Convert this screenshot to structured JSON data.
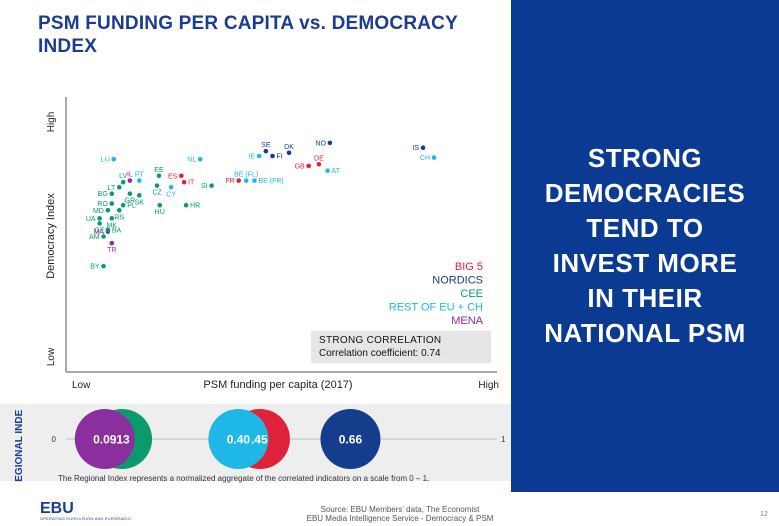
{
  "title": "PSM FUNDING PER CAPITA vs. DEMOCRACY INDEX",
  "right_panel": {
    "lines": [
      "STRONG",
      "DEMOCRACIES",
      "TEND TO",
      "INVEST MORE",
      "IN THEIR",
      "NATIONAL PSM"
    ]
  },
  "colors": {
    "big5": "#e0213a",
    "nordics": "#163d8c",
    "cee": "#0a9a6e",
    "rest": "#1fb8e6",
    "mena": "#8b2f9e",
    "navy": "#0a3a92"
  },
  "legend": [
    {
      "key": "big5",
      "label": "BIG 5"
    },
    {
      "key": "nordics",
      "label": "NORDICS"
    },
    {
      "key": "cee",
      "label": "CEE"
    },
    {
      "key": "rest",
      "label": "REST OF EU + CH"
    },
    {
      "key": "mena",
      "label": "MENA"
    }
  ],
  "correlation": {
    "title": "STRONG CORRELATION",
    "text": "Correlation coefficient: 0.74"
  },
  "chart_data": {
    "type": "scatter",
    "title": "PSM FUNDING PER CAPITA vs. DEMOCRACY INDEX",
    "xlabel": "PSM funding per capita (2017)",
    "ylabel": "Democracy Index",
    "x_ticks": [
      "Low",
      "High"
    ],
    "y_ticks": [
      "Low",
      "High"
    ],
    "xlim": [
      0,
      100
    ],
    "ylim": [
      0,
      100
    ],
    "points": [
      {
        "label": "NO",
        "group": "nordics",
        "x": 64.1,
        "y": 85.7,
        "label_side": "left"
      },
      {
        "label": "SE",
        "group": "nordics",
        "x": 47.8,
        "y": 82.1,
        "label_side": "above"
      },
      {
        "label": "DK",
        "group": "nordics",
        "x": 53.7,
        "y": 81.4,
        "label_side": "above"
      },
      {
        "label": "FI",
        "group": "nordics",
        "x": 49.5,
        "y": 80.0,
        "label_side": "right"
      },
      {
        "label": "IS",
        "group": "nordics",
        "x": 87.8,
        "y": 83.6,
        "label_side": "left"
      },
      {
        "label": "IE",
        "group": "rest",
        "x": 46.1,
        "y": 80.0,
        "label_side": "left"
      },
      {
        "label": "CH",
        "group": "rest",
        "x": 90.6,
        "y": 79.3,
        "label_side": "left"
      },
      {
        "label": "NL",
        "group": "rest",
        "x": 31.1,
        "y": 78.6,
        "label_side": "left"
      },
      {
        "label": "LU",
        "group": "rest",
        "x": 9.1,
        "y": 78.6,
        "label_side": "left"
      },
      {
        "label": "DE",
        "group": "big5",
        "x": 61.3,
        "y": 76.4,
        "label_side": "above"
      },
      {
        "label": "GB",
        "group": "big5",
        "x": 58.7,
        "y": 75.7,
        "label_side": "left"
      },
      {
        "label": "AT",
        "group": "rest",
        "x": 63.5,
        "y": 73.6,
        "label_side": "right"
      },
      {
        "label": "BE (FL)",
        "group": "rest",
        "x": 42.8,
        "y": 69.3,
        "label_side": "above"
      },
      {
        "label": "BE (FR)",
        "group": "rest",
        "x": 44.9,
        "y": 69.3,
        "label_side": "right"
      },
      {
        "label": "FR",
        "group": "big5",
        "x": 40.9,
        "y": 69.3,
        "label_side": "left"
      },
      {
        "label": "SI",
        "group": "cee",
        "x": 34.0,
        "y": 67.1,
        "label_side": "left"
      },
      {
        "label": "ES",
        "group": "big5",
        "x": 26.3,
        "y": 71.4,
        "label_side": "left"
      },
      {
        "label": "IT",
        "group": "big5",
        "x": 27.0,
        "y": 68.6,
        "label_side": "right"
      },
      {
        "label": "EE",
        "group": "cee",
        "x": 20.6,
        "y": 71.4,
        "label_side": "above"
      },
      {
        "label": "PT",
        "group": "rest",
        "x": 15.6,
        "y": 69.3,
        "label_side": "above"
      },
      {
        "label": "IL",
        "group": "mena",
        "x": 13.2,
        "y": 69.3,
        "label_side": "above"
      },
      {
        "label": "LV",
        "group": "cee",
        "x": 11.5,
        "y": 68.6,
        "label_side": "above"
      },
      {
        "label": "LT",
        "group": "cee",
        "x": 10.5,
        "y": 66.4,
        "label_side": "left"
      },
      {
        "label": "CY",
        "group": "rest",
        "x": 23.7,
        "y": 66.4,
        "label_side": "below"
      },
      {
        "label": "CZ",
        "group": "cee",
        "x": 20.1,
        "y": 67.1,
        "label_side": "below"
      },
      {
        "label": "BG",
        "group": "cee",
        "x": 8.6,
        "y": 63.6,
        "label_side": "left"
      },
      {
        "label": "GR",
        "group": "cee",
        "x": 13.2,
        "y": 63.6,
        "label_side": "below"
      },
      {
        "label": "SK",
        "group": "cee",
        "x": 15.6,
        "y": 62.9,
        "label_side": "below"
      },
      {
        "label": "RO",
        "group": "cee",
        "x": 8.6,
        "y": 59.3,
        "label_side": "left"
      },
      {
        "label": "HU",
        "group": "cee",
        "x": 20.8,
        "y": 58.6,
        "label_side": "below"
      },
      {
        "label": "HR",
        "group": "cee",
        "x": 27.5,
        "y": 58.6,
        "label_side": "right"
      },
      {
        "label": "PL",
        "group": "cee",
        "x": 11.5,
        "y": 58.6,
        "label_side": "right"
      },
      {
        "label": "MD",
        "group": "cee",
        "x": 7.6,
        "y": 56.4,
        "label_side": "left"
      },
      {
        "label": "RS",
        "group": "cee",
        "x": 10.5,
        "y": 56.4,
        "label_side": "below"
      },
      {
        "label": "UA",
        "group": "cee",
        "x": 5.5,
        "y": 52.9,
        "label_side": "left"
      },
      {
        "label": "MK",
        "group": "cee",
        "x": 8.6,
        "y": 52.9,
        "label_side": "below"
      },
      {
        "label": "GE",
        "group": "cee",
        "x": 5.5,
        "y": 50.7,
        "label_side": "below"
      },
      {
        "label": "MA",
        "group": "mena",
        "x": 7.6,
        "y": 47.1,
        "label_side": "left"
      },
      {
        "label": "BA",
        "group": "cee",
        "x": 7.6,
        "y": 47.9,
        "label_side": "right"
      },
      {
        "label": "AM",
        "group": "cee",
        "x": 6.5,
        "y": 45.0,
        "label_side": "left"
      },
      {
        "label": "TR",
        "group": "mena",
        "x": 8.6,
        "y": 42.1,
        "label_side": "below"
      },
      {
        "label": "BY",
        "group": "cee",
        "x": 6.5,
        "y": 32.1,
        "label_side": "left"
      }
    ],
    "regional_index": {
      "label": "REGIONAL INDEX",
      "range": [
        0,
        1
      ],
      "min_label": "0",
      "max_label": "1",
      "values": [
        {
          "group": "mena",
          "value": 0.09,
          "text": "0.09"
        },
        {
          "group": "cee",
          "value": 0.13,
          "text": ".13"
        },
        {
          "group": "rest",
          "value": 0.4,
          "text": "0.40"
        },
        {
          "group": "big5",
          "value": 0.45,
          "text": ".45"
        },
        {
          "group": "nordics",
          "value": 0.66,
          "text": "0.66"
        }
      ],
      "note": "The Regional Index represents a normalized aggregate of the correlated indicators on a scale from 0 – 1."
    }
  },
  "footer": {
    "logo": "EBU",
    "logo_sub": "OPERATING EUROVISION AND EURORADIO",
    "source_line1": "Source: EBU Members' data, The Economist",
    "source_line2": "EBU Media Intelligence Service - Democracy & PSM",
    "page": "12"
  }
}
